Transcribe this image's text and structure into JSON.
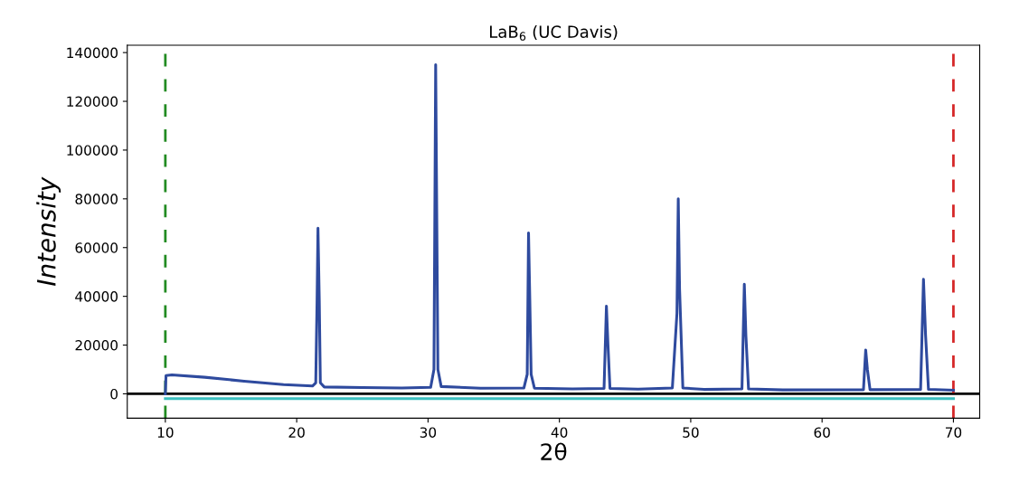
{
  "chart_data": {
    "type": "line",
    "title": "LaB$_{6}$ (UC Davis)",
    "xlabel": "2θ",
    "ylabel": "Intensity",
    "series": [
      {
        "color": "#2e4a9e",
        "x": [
          10.0,
          10.05,
          10.5,
          13,
          16,
          19,
          21.2,
          21.45,
          21.55,
          21.62,
          21.72,
          21.8,
          22.1,
          25,
          28,
          30.2,
          30.45,
          30.58,
          30.75,
          31,
          34,
          37.3,
          37.55,
          37.65,
          37.75,
          37.85,
          38.1,
          41,
          43.4,
          43.58,
          43.7,
          43.85,
          46,
          48.6,
          48.95,
          49.05,
          49.15,
          49.4,
          51,
          53.9,
          54.08,
          54.2,
          54.4,
          57,
          63.15,
          63.32,
          63.45,
          63.65,
          67.5,
          67.72,
          67.88,
          68.1,
          70
        ],
        "values": [
          0,
          7500,
          7800,
          6800,
          5200,
          3800,
          3200,
          4500,
          38000,
          68000,
          38000,
          4500,
          2800,
          2600,
          2400,
          2700,
          10000,
          135000,
          10000,
          3000,
          2300,
          2400,
          8000,
          66000,
          38000,
          8000,
          2300,
          2000,
          2200,
          36000,
          20000,
          2200,
          1900,
          2400,
          33000,
          80000,
          43000,
          2400,
          1800,
          2000,
          45000,
          24000,
          2000,
          1600,
          1700,
          18000,
          10000,
          1700,
          1800,
          47000,
          24000,
          1800,
          1500
        ]
      },
      {
        "color": "#3bbfbf",
        "x": [
          10,
          70
        ],
        "values": [
          -2000,
          -2000
        ]
      }
    ],
    "xlim": [
      7.1,
      72
    ],
    "xticks": [
      10,
      20,
      30,
      40,
      50,
      60,
      70
    ],
    "ylim": [
      -10000,
      143000
    ],
    "yticks": [
      0,
      20000,
      40000,
      60000,
      80000,
      100000,
      120000,
      140000
    ],
    "ref_lines": [
      {
        "axis": "y",
        "value": 0,
        "color": "#000000",
        "line_style": "solid"
      },
      {
        "axis": "x",
        "value": 10,
        "color": "#228b22",
        "line_style": "dashed"
      },
      {
        "axis": "x",
        "value": 70,
        "color": "#d62728",
        "line_style": "dashed"
      }
    ],
    "grid": false,
    "line_style": "solid",
    "marker": "none"
  }
}
